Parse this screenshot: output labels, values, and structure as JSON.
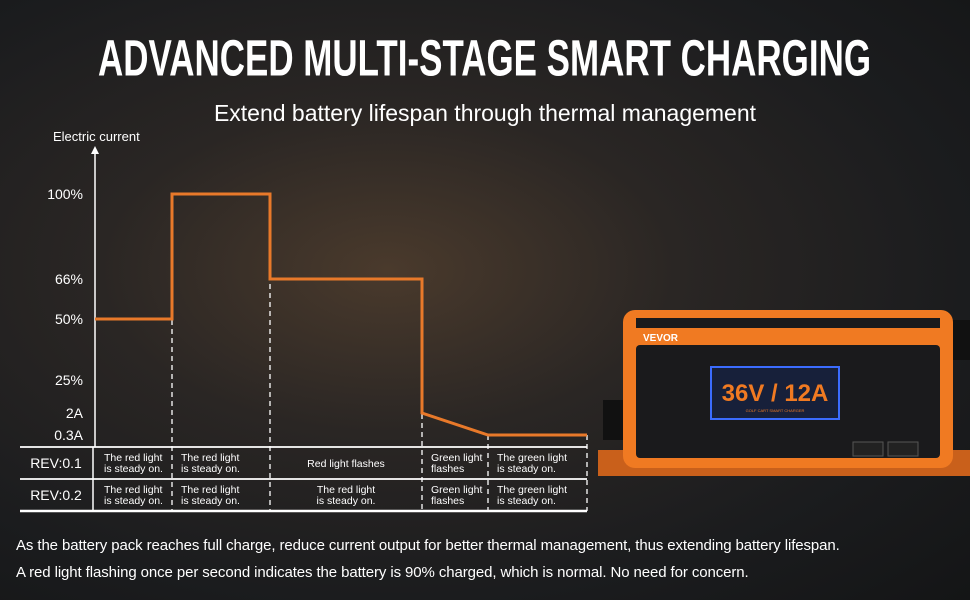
{
  "header": {
    "title": "ADVANCED MULTI-STAGE SMART CHARGING",
    "subtitle": "Extend battery lifespan through thermal management"
  },
  "chart_data": {
    "type": "line",
    "ylabel": "Electric current",
    "y_ticks": [
      "100%",
      "66%",
      "50%",
      "25%",
      "2A",
      "0.3A"
    ],
    "stages": [
      {
        "start": "50%",
        "end": "50%"
      },
      {
        "start": "100%",
        "end": "100%"
      },
      {
        "start": "66%",
        "end": "66%"
      },
      {
        "start": "2A",
        "end": "0.3A"
      },
      {
        "start": "0.3A",
        "end": "0.3A"
      }
    ],
    "line_color": "#e8792a",
    "grid": false
  },
  "table": {
    "rows": [
      {
        "label": "REV:0.1",
        "cells": [
          "The red light|is steady on.",
          "The red light|is steady on.",
          "Red light flashes",
          "Green light|flashes",
          "The green light|is steady on."
        ]
      },
      {
        "label": "REV:0.2",
        "cells": [
          "The red light|is steady on.",
          "The red light|is steady on.",
          "The red light|is steady on.",
          "Green light|flashes",
          "The green light|is steady on."
        ]
      }
    ]
  },
  "product": {
    "brand": "VEVOR",
    "rating": "36V / 12A",
    "subtitle": "GOLF CART SMART CHARGER",
    "body_color": "#f07a22"
  },
  "footer": {
    "line1": "As the battery pack reaches full charge, reduce current output for better thermal management, thus extending battery lifespan.",
    "line2": "A red light flashing once per second indicates the battery is 90% charged, which is normal. No need for concern."
  }
}
